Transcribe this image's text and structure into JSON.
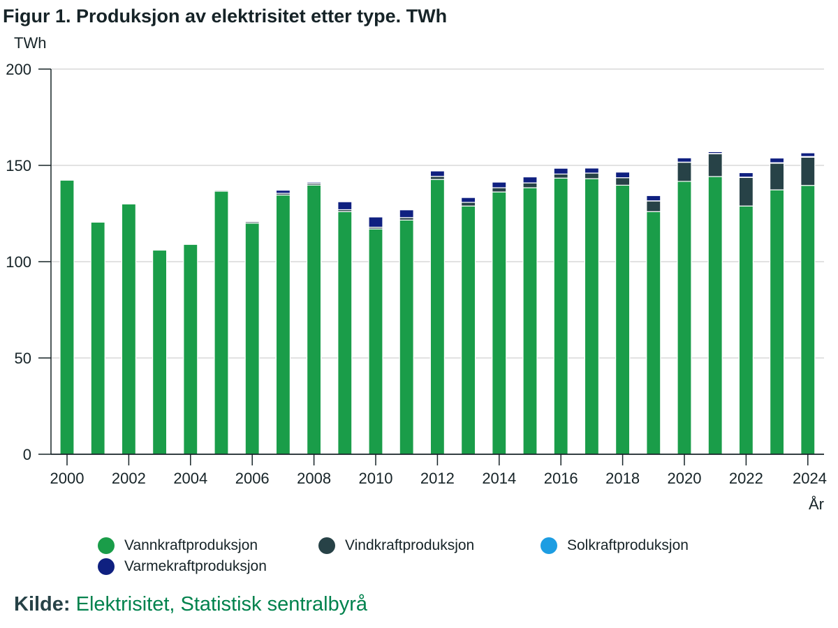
{
  "chart_data": {
    "type": "bar",
    "stacked": true,
    "title": "Figur 1. Produksjon av elektrisitet etter type. TWh",
    "ylabel": "TWh",
    "xlabel": "År",
    "ylim": [
      0,
      200
    ],
    "yticks": [
      0,
      50,
      100,
      150,
      200
    ],
    "categories": [
      "2000",
      "2001",
      "2002",
      "2003",
      "2004",
      "2005",
      "2006",
      "2007",
      "2008",
      "2009",
      "2010",
      "2011",
      "2012",
      "2013",
      "2014",
      "2015",
      "2016",
      "2017",
      "2018",
      "2019",
      "2020",
      "2021",
      "2022",
      "2023",
      "2024"
    ],
    "xtick_labels": [
      "2000",
      "2002",
      "2004",
      "2006",
      "2008",
      "2010",
      "2012",
      "2014",
      "2016",
      "2018",
      "2020",
      "2022",
      "2024"
    ],
    "series": [
      {
        "name": "Vannkraftproduksjon",
        "color": "#1a9d49",
        "values": [
          142.3,
          120.5,
          130.0,
          106.0,
          109.0,
          136.6,
          120.0,
          134.6,
          139.8,
          126.0,
          117.0,
          121.6,
          142.7,
          128.9,
          136.2,
          138.4,
          143.4,
          143.1,
          139.7,
          126.0,
          141.7,
          144.2,
          128.9,
          137.3,
          139.6
        ]
      },
      {
        "name": "Vindkraftproduksjon",
        "color": "#274247",
        "values": [
          0.0,
          0.0,
          0.1,
          0.2,
          0.3,
          0.5,
          0.7,
          0.9,
          0.9,
          1.0,
          0.9,
          1.3,
          1.6,
          1.9,
          2.2,
          2.5,
          2.1,
          2.9,
          3.9,
          5.5,
          9.9,
          11.8,
          14.8,
          13.8,
          14.6
        ]
      },
      {
        "name": "Solkraftproduksjon",
        "color": "#1d9de2",
        "values": [
          0.0,
          0.0,
          0.0,
          0.0,
          0.0,
          0.0,
          0.0,
          0.0,
          0.0,
          0.0,
          0.0,
          0.0,
          0.0,
          0.0,
          0.0,
          0.0,
          0.0,
          0.0,
          0.0,
          0.1,
          0.1,
          0.2,
          0.2,
          0.3,
          0.4
        ]
      },
      {
        "name": "Varmekraftproduksjon",
        "color": "#0f2080",
        "values": [
          0.0,
          0.0,
          0.0,
          0.0,
          0.0,
          0.0,
          0.0,
          1.6,
          0.6,
          4.1,
          5.3,
          4.0,
          2.8,
          2.5,
          2.9,
          3.1,
          3.0,
          2.6,
          2.9,
          2.7,
          2.2,
          0.9,
          2.3,
          2.4,
          1.9
        ]
      }
    ]
  },
  "source": {
    "label": "Kilde:",
    "text": "Elektrisitet, Statistisk sentralbyrå"
  }
}
